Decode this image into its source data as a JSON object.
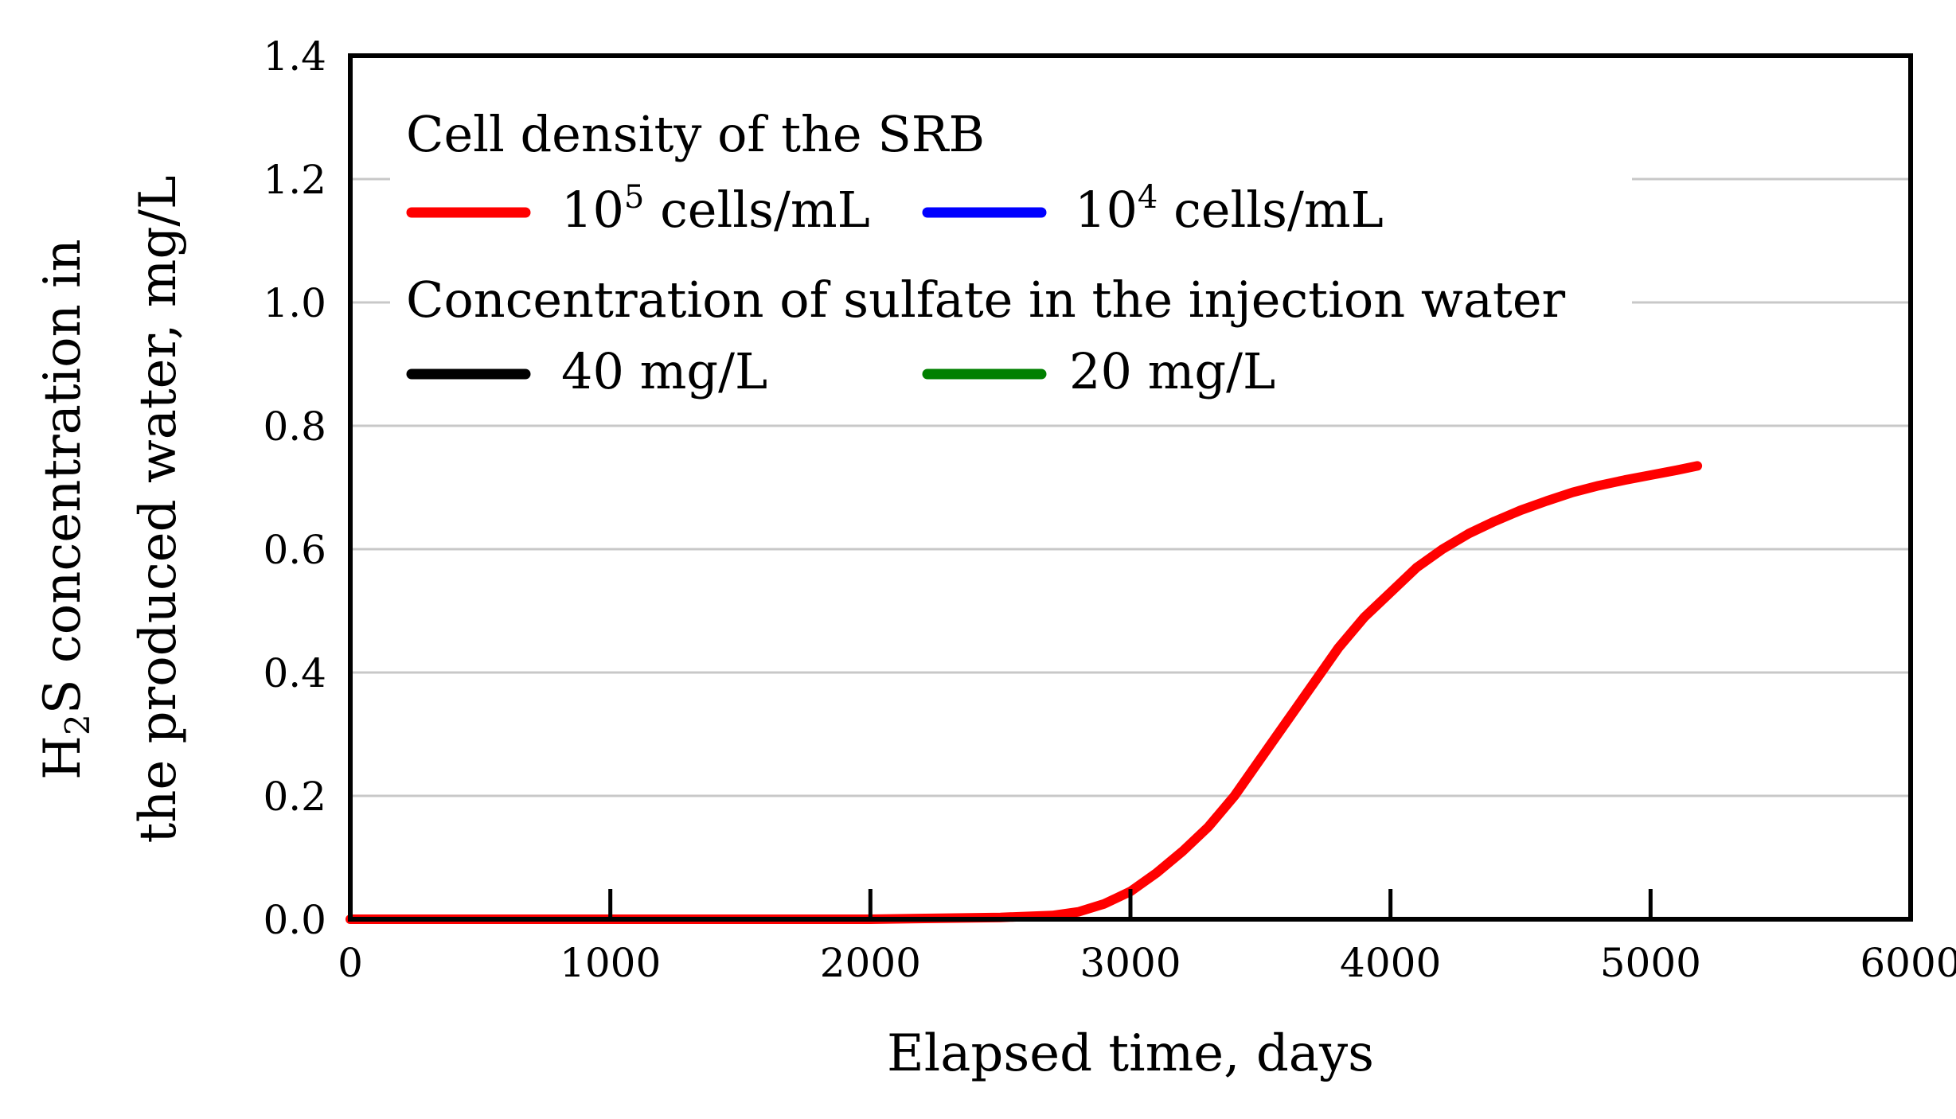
{
  "chart_data": {
    "type": "line",
    "xlabel": "Elapsed time, days",
    "ylabel_line1_prefix": "H",
    "ylabel_line1_sub": "2",
    "ylabel_line1_suffix": "S concentration in",
    "ylabel_line2": "the produced water, mg/L",
    "xlim": [
      0,
      6000
    ],
    "ylim": [
      0,
      1.4
    ],
    "x_ticks": [
      0,
      1000,
      2000,
      3000,
      4000,
      5000,
      6000
    ],
    "x_tick_labels": [
      "0",
      "1000",
      "2000",
      "3000",
      "4000",
      "5000",
      "6000"
    ],
    "y_ticks": [
      0,
      0.2,
      0.4,
      0.6,
      0.8,
      1.0,
      1.2,
      1.4
    ],
    "y_tick_labels": [
      "0.0",
      "0.2",
      "0.4",
      "0.6",
      "0.8",
      "1.0",
      "1.2",
      "1.4"
    ],
    "grid": "horizontal",
    "legend": {
      "placement": "top-left",
      "group1_title": "Cell density of the SRB",
      "group2_title": "Concentration of sulfate in the injection water",
      "entries": [
        {
          "base": "10",
          "sup": "5",
          "rest": " cells/mL",
          "color": "#ff0000"
        },
        {
          "base": "10",
          "sup": "4",
          "rest": " cells/mL",
          "color": "#0000ff"
        },
        {
          "base": "",
          "sup": "",
          "rest": "40 mg/L",
          "color": "#000000"
        },
        {
          "base": "",
          "sup": "",
          "rest": "20 mg/L",
          "color": "#008000"
        }
      ]
    },
    "series": [
      {
        "name": "10^5 cells/mL",
        "color": "#ff0000",
        "x": [
          0,
          500,
          1000,
          1500,
          2000,
          2500,
          2700,
          2800,
          2900,
          3000,
          3100,
          3200,
          3300,
          3400,
          3500,
          3600,
          3700,
          3800,
          3900,
          4000,
          4100,
          4200,
          4300,
          4400,
          4500,
          4600,
          4700,
          4800,
          4900,
          5000,
          5100,
          5180
        ],
        "y": [
          0.0,
          0.0,
          0.0,
          0.0,
          0.0,
          0.003,
          0.006,
          0.012,
          0.025,
          0.045,
          0.075,
          0.11,
          0.15,
          0.2,
          0.26,
          0.32,
          0.38,
          0.44,
          0.49,
          0.53,
          0.57,
          0.6,
          0.625,
          0.645,
          0.663,
          0.678,
          0.692,
          0.703,
          0.712,
          0.72,
          0.728,
          0.735
        ]
      }
    ]
  }
}
